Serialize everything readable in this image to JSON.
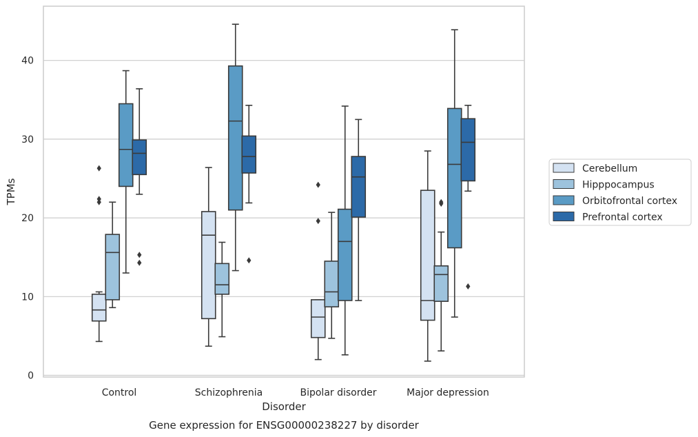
{
  "chart_data": {
    "type": "box",
    "caption": "Gene expression for ENSG00000238227 by disorder",
    "xlabel": "Disorder",
    "ylabel": "TPMs",
    "ylim": [
      -0.3,
      47
    ],
    "yticks": [
      0,
      10,
      20,
      30,
      40
    ],
    "grid": "horizontal",
    "legend_position": "right",
    "categories": [
      "Control",
      "Schizophrenia",
      "Bipolar disorder",
      "Major depression"
    ],
    "series": [
      {
        "name": "Cerebellum",
        "color": "#d4e2f2",
        "boxes": [
          {
            "whislo": 4.3,
            "q1": 6.9,
            "med": 8.3,
            "q3": 10.3,
            "whishi": 10.6,
            "fliers": [
              22.0,
              22.4,
              26.3
            ]
          },
          {
            "whislo": 3.7,
            "q1": 7.2,
            "med": 17.8,
            "q3": 20.8,
            "whishi": 26.4,
            "fliers": []
          },
          {
            "whislo": 2.0,
            "q1": 4.8,
            "med": 7.4,
            "q3": 9.6,
            "whishi": 9.6,
            "fliers": [
              19.6,
              24.2
            ]
          },
          {
            "whislo": 1.8,
            "q1": 7.0,
            "med": 9.5,
            "q3": 23.5,
            "whishi": 28.5,
            "fliers": []
          }
        ]
      },
      {
        "name": "Hipppocampus",
        "color": "#9dc3dd",
        "boxes": [
          {
            "whislo": 8.6,
            "q1": 9.6,
            "med": 15.6,
            "q3": 17.9,
            "whishi": 22.0,
            "fliers": []
          },
          {
            "whislo": 4.9,
            "q1": 10.3,
            "med": 11.5,
            "q3": 14.2,
            "whishi": 16.9,
            "fliers": []
          },
          {
            "whislo": 4.7,
            "q1": 8.7,
            "med": 10.6,
            "q3": 14.5,
            "whishi": 20.7,
            "fliers": []
          },
          {
            "whislo": 3.1,
            "q1": 9.4,
            "med": 12.8,
            "q3": 13.9,
            "whishi": 18.2,
            "fliers": [
              21.8,
              22.0
            ]
          }
        ]
      },
      {
        "name": "Orbitofrontal cortex",
        "color": "#5a9bc5",
        "boxes": [
          {
            "whislo": 13.0,
            "q1": 24.0,
            "med": 28.7,
            "q3": 34.5,
            "whishi": 38.7,
            "fliers": []
          },
          {
            "whislo": 13.3,
            "q1": 21.0,
            "med": 32.3,
            "q3": 39.3,
            "whishi": 44.6,
            "fliers": []
          },
          {
            "whislo": 2.6,
            "q1": 9.5,
            "med": 17.0,
            "q3": 21.1,
            "whishi": 34.2,
            "fliers": []
          },
          {
            "whislo": 7.4,
            "q1": 16.2,
            "med": 26.8,
            "q3": 33.9,
            "whishi": 43.9,
            "fliers": []
          }
        ]
      },
      {
        "name": "Prefrontal cortex",
        "color": "#2c6aa8",
        "boxes": [
          {
            "whislo": 23.0,
            "q1": 25.5,
            "med": 28.2,
            "q3": 29.9,
            "whishi": 36.4,
            "fliers": [
              14.3,
              15.3
            ]
          },
          {
            "whislo": 21.9,
            "q1": 25.7,
            "med": 27.8,
            "q3": 30.4,
            "whishi": 34.3,
            "fliers": [
              14.6
            ]
          },
          {
            "whislo": 9.5,
            "q1": 20.1,
            "med": 25.2,
            "q3": 27.8,
            "whishi": 32.5,
            "fliers": []
          },
          {
            "whislo": 23.4,
            "q1": 24.7,
            "med": 29.6,
            "q3": 32.6,
            "whishi": 34.3,
            "fliers": [
              11.3
            ]
          }
        ]
      }
    ]
  }
}
